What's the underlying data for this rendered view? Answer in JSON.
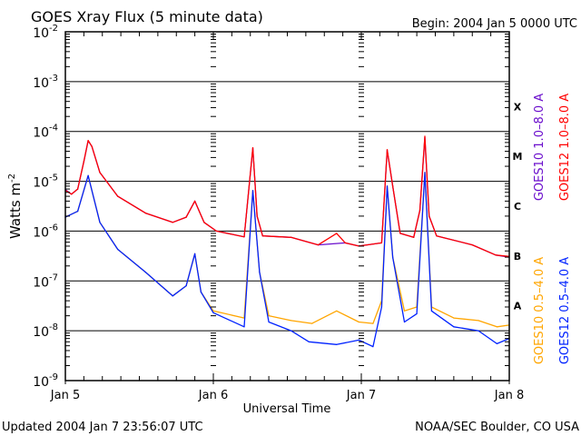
{
  "chart_data": {
    "type": "line",
    "title": "GOES Xray Flux (5 minute data)",
    "begin_label": "Begin:  2004 Jan 5 0000 UTC",
    "xlabel": "Universal Time",
    "ylabel": "Watts m",
    "ylabel_sup": "-2",
    "x_unit": "hours since 2004 Jan 5 0000 UTC",
    "xlim": [
      0,
      72
    ],
    "ylim": [
      1e-09,
      0.01
    ],
    "yscale": "log",
    "grid": "horizontal decade lines",
    "x_ticks": [
      {
        "h": 0,
        "label": "Jan 5"
      },
      {
        "h": 24,
        "label": "Jan 6"
      },
      {
        "h": 48,
        "label": "Jan 7"
      },
      {
        "h": 72,
        "label": "Jan 8"
      }
    ],
    "y_ticks": [
      {
        "exp": -2
      },
      {
        "exp": -3
      },
      {
        "exp": -4
      },
      {
        "exp": -5
      },
      {
        "exp": -6
      },
      {
        "exp": -7
      },
      {
        "exp": -8
      },
      {
        "exp": -9
      }
    ],
    "flare_classes": [
      {
        "label": "X",
        "exp": -3.5
      },
      {
        "label": "M",
        "exp": -4.5
      },
      {
        "label": "C",
        "exp": -5.5
      },
      {
        "label": "B",
        "exp": -6.5
      },
      {
        "label": "A",
        "exp": -7.5
      }
    ],
    "series": [
      {
        "name": "GOES10 1.0-8.0 A",
        "color": "#6a0dcc",
        "legend": "GOES10 1.0–8.0 A",
        "points": [
          [
            0,
            6.8e-06
          ],
          [
            1,
            5.5e-06
          ],
          [
            2,
            7e-06
          ],
          [
            3,
            2.5e-05
          ],
          [
            3.7,
            6.5e-05
          ],
          [
            4.3,
            5e-05
          ],
          [
            5.6,
            1.5e-05
          ],
          [
            8.5,
            5e-06
          ],
          [
            13,
            2.3e-06
          ],
          [
            17.4,
            1.5e-06
          ],
          [
            19.6,
            1.9e-06
          ],
          [
            21,
            4e-06
          ],
          [
            22.5,
            1.5e-06
          ],
          [
            24.5,
            1e-06
          ],
          [
            29,
            7.7e-07
          ],
          [
            30.4,
            4.6e-05
          ],
          [
            31.1,
            2e-06
          ],
          [
            32,
            8e-07
          ],
          [
            36.6,
            7.5e-07
          ],
          [
            41,
            5.3e-07
          ],
          [
            45.4,
            5.8e-07
          ],
          [
            47.6,
            5e-07
          ],
          [
            51.3,
            5.8e-07
          ],
          [
            52.2,
            4.2e-05
          ],
          [
            53.1,
            8e-06
          ],
          [
            54.3,
            9e-07
          ],
          [
            56.5,
            7.5e-07
          ],
          [
            57.5,
            2.6e-06
          ],
          [
            58.3,
            7.5e-05
          ],
          [
            59,
            2e-06
          ],
          [
            60.2,
            8e-07
          ],
          [
            66,
            5.3e-07
          ],
          [
            69.8,
            3.3e-07
          ],
          [
            72,
            3e-07
          ]
        ]
      },
      {
        "name": "GOES12 1.0-8.0 A",
        "color": "#ff0000",
        "legend": "GOES12 1.0–8.0 A",
        "points": [
          [
            0,
            6.6e-06
          ],
          [
            1,
            5.5e-06
          ],
          [
            2,
            7e-06
          ],
          [
            3,
            2.5e-05
          ],
          [
            3.7,
            6.6e-05
          ],
          [
            4.3,
            5e-05
          ],
          [
            5.6,
            1.5e-05
          ],
          [
            8.5,
            5e-06
          ],
          [
            13,
            2.3e-06
          ],
          [
            17.4,
            1.5e-06
          ],
          [
            19.6,
            1.9e-06
          ],
          [
            21,
            4e-06
          ],
          [
            22.5,
            1.5e-06
          ],
          [
            24.5,
            1e-06
          ],
          [
            29,
            7.7e-07
          ],
          [
            30.4,
            4.7e-05
          ],
          [
            31.1,
            2e-06
          ],
          [
            32,
            8e-07
          ],
          [
            36.6,
            7.5e-07
          ],
          [
            41,
            5.3e-07
          ],
          [
            44,
            9e-07
          ],
          [
            45.4,
            5.8e-07
          ],
          [
            47.6,
            5e-07
          ],
          [
            51.3,
            5.8e-07
          ],
          [
            52.2,
            4.3e-05
          ],
          [
            53.1,
            8e-06
          ],
          [
            54.3,
            9e-07
          ],
          [
            56.5,
            7.5e-07
          ],
          [
            57.5,
            2.6e-06
          ],
          [
            58.3,
            8e-05
          ],
          [
            59,
            2e-06
          ],
          [
            60.2,
            8e-07
          ],
          [
            66,
            5.3e-07
          ],
          [
            69.8,
            3.3e-07
          ],
          [
            72,
            3.1e-07
          ]
        ]
      },
      {
        "name": "GOES10 0.5-4.0 A",
        "color": "#ffa500",
        "legend": "GOES10 0.5–4.0 A",
        "points": [
          [
            0,
            1.9e-06
          ],
          [
            2,
            2.5e-06
          ],
          [
            3.7,
            1.3e-05
          ],
          [
            5.6,
            1.5e-06
          ],
          [
            8.5,
            4.3e-07
          ],
          [
            13,
            1.5e-07
          ],
          [
            17.4,
            5e-08
          ],
          [
            19.6,
            8e-08
          ],
          [
            21,
            3.5e-07
          ],
          [
            22,
            6e-08
          ],
          [
            24,
            2.5e-08
          ],
          [
            29,
            1.8e-08
          ],
          [
            30.4,
            6.5e-06
          ],
          [
            31.5,
            1.5e-07
          ],
          [
            33,
            2e-08
          ],
          [
            36.6,
            1.6e-08
          ],
          [
            40,
            1.4e-08
          ],
          [
            44,
            2.5e-08
          ],
          [
            47.6,
            1.5e-08
          ],
          [
            49.9,
            1.4e-08
          ],
          [
            51.3,
            4e-08
          ],
          [
            52.2,
            8e-06
          ],
          [
            53.1,
            3e-07
          ],
          [
            55,
            2.5e-08
          ],
          [
            57,
            3e-08
          ],
          [
            58.3,
            1.5e-05
          ],
          [
            59.4,
            3e-08
          ],
          [
            63,
            1.8e-08
          ],
          [
            67,
            1.6e-08
          ],
          [
            70,
            1.2e-08
          ],
          [
            72,
            1.3e-08
          ]
        ]
      },
      {
        "name": "GOES12 0.5-4.0 A",
        "color": "#0022ff",
        "legend": "GOES12 0.5–4.0 A",
        "points": [
          [
            0,
            1.9e-06
          ],
          [
            2,
            2.5e-06
          ],
          [
            3.7,
            1.3e-05
          ],
          [
            5.6,
            1.5e-06
          ],
          [
            8.5,
            4.3e-07
          ],
          [
            13,
            1.5e-07
          ],
          [
            17.4,
            5e-08
          ],
          [
            19.6,
            8e-08
          ],
          [
            21,
            3.5e-07
          ],
          [
            22,
            6e-08
          ],
          [
            24,
            2.3e-08
          ],
          [
            29,
            1.2e-08
          ],
          [
            30.4,
            6.5e-06
          ],
          [
            31.5,
            1.5e-07
          ],
          [
            33,
            1.5e-08
          ],
          [
            36.6,
            1e-08
          ],
          [
            39.5,
            6e-09
          ],
          [
            44,
            5.3e-09
          ],
          [
            47.6,
            6.5e-09
          ],
          [
            49.9,
            4.8e-09
          ],
          [
            51.3,
            3e-08
          ],
          [
            52.2,
            8e-06
          ],
          [
            53.1,
            3e-07
          ],
          [
            55,
            1.5e-08
          ],
          [
            57,
            2.2e-08
          ],
          [
            58.3,
            1.5e-05
          ],
          [
            59.4,
            2.5e-08
          ],
          [
            63,
            1.2e-08
          ],
          [
            67,
            1e-08
          ],
          [
            70,
            5.5e-09
          ],
          [
            72,
            7e-09
          ]
        ]
      }
    ]
  },
  "footer": {
    "updated": "Updated 2004 Jan  7 23:56:07 UTC",
    "credit": "NOAA/SEC Boulder, CO USA"
  }
}
